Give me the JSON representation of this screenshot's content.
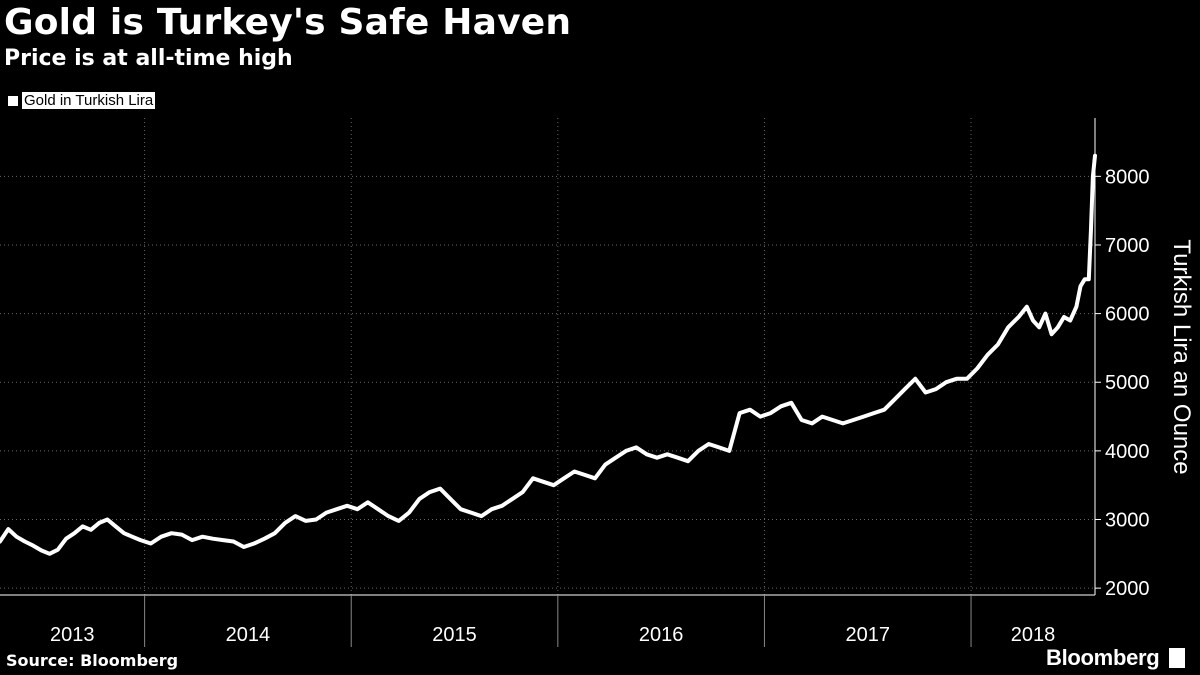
{
  "header": {
    "title": "Gold is Turkey's Safe Haven",
    "subtitle": "Price is at all-time high"
  },
  "footer": {
    "source": "Source: Bloomberg",
    "brand": "Bloomberg"
  },
  "colors": {
    "background": "#000000",
    "line": "#ffffff",
    "grid": "#666666"
  },
  "chart_data": {
    "type": "line",
    "title": "Gold is Turkey's Safe Haven",
    "subtitle": "Price is at all-time high",
    "ylabel": "Turkish Lira an Ounce",
    "ylim": [
      1900,
      8850
    ],
    "yticks": [
      2000,
      3000,
      4000,
      5000,
      6000,
      7000,
      8000
    ],
    "xlim": [
      2013.3,
      2018.6
    ],
    "year_ticks": [
      "2013",
      "2014",
      "2015",
      "2016",
      "2017",
      "2018"
    ],
    "grid": true,
    "legend_position": "top-left",
    "series": [
      {
        "name": "Gold in Turkish Lira",
        "x": [
          2013.3,
          2013.34,
          2013.38,
          2013.42,
          2013.46,
          2013.5,
          2013.54,
          2013.58,
          2013.62,
          2013.66,
          2013.7,
          2013.74,
          2013.78,
          2013.82,
          2013.86,
          2013.9,
          2013.94,
          2013.98,
          2014.03,
          2014.08,
          2014.13,
          2014.18,
          2014.23,
          2014.28,
          2014.33,
          2014.38,
          2014.43,
          2014.48,
          2014.53,
          2014.58,
          2014.63,
          2014.68,
          2014.73,
          2014.78,
          2014.83,
          2014.88,
          2014.93,
          2014.98,
          2015.03,
          2015.08,
          2015.13,
          2015.18,
          2015.23,
          2015.28,
          2015.33,
          2015.38,
          2015.43,
          2015.48,
          2015.53,
          2015.58,
          2015.63,
          2015.68,
          2015.73,
          2015.78,
          2015.83,
          2015.88,
          2015.93,
          2015.98,
          2016.03,
          2016.08,
          2016.13,
          2016.18,
          2016.23,
          2016.28,
          2016.33,
          2016.38,
          2016.43,
          2016.48,
          2016.53,
          2016.58,
          2016.63,
          2016.68,
          2016.73,
          2016.78,
          2016.83,
          2016.88,
          2016.93,
          2016.98,
          2017.03,
          2017.08,
          2017.13,
          2017.18,
          2017.23,
          2017.28,
          2017.33,
          2017.38,
          2017.43,
          2017.48,
          2017.53,
          2017.58,
          2017.63,
          2017.68,
          2017.73,
          2017.78,
          2017.83,
          2017.88,
          2017.93,
          2017.98,
          2018.03,
          2018.08,
          2018.13,
          2018.18,
          2018.23,
          2018.27,
          2018.3,
          2018.33,
          2018.36,
          2018.39,
          2018.42,
          2018.45,
          2018.48,
          2018.51,
          2018.53,
          2018.55,
          2018.57,
          2018.58,
          2018.59,
          2018.6
        ],
        "values": [
          2680,
          2860,
          2750,
          2680,
          2620,
          2550,
          2500,
          2560,
          2720,
          2800,
          2900,
          2850,
          2950,
          3000,
          2900,
          2800,
          2750,
          2700,
          2650,
          2750,
          2800,
          2780,
          2700,
          2750,
          2720,
          2700,
          2680,
          2600,
          2650,
          2720,
          2800,
          2950,
          3050,
          2980,
          3000,
          3100,
          3150,
          3200,
          3150,
          3250,
          3150,
          3050,
          2980,
          3100,
          3300,
          3400,
          3450,
          3300,
          3150,
          3100,
          3050,
          3150,
          3200,
          3300,
          3400,
          3600,
          3550,
          3500,
          3600,
          3700,
          3650,
          3600,
          3800,
          3900,
          4000,
          4050,
          3950,
          3900,
          3950,
          3900,
          3850,
          4000,
          4100,
          4050,
          4000,
          4550,
          4600,
          4500,
          4550,
          4650,
          4700,
          4450,
          4400,
          4500,
          4450,
          4400,
          4450,
          4500,
          4550,
          4600,
          4750,
          4900,
          5050,
          4850,
          4900,
          5000,
          5050,
          5050,
          5200,
          5400,
          5550,
          5800,
          5950,
          6100,
          5900,
          5800,
          6000,
          5700,
          5800,
          5950,
          5900,
          6100,
          6400,
          6500,
          6500,
          7200,
          8000,
          8300
        ]
      }
    ]
  }
}
